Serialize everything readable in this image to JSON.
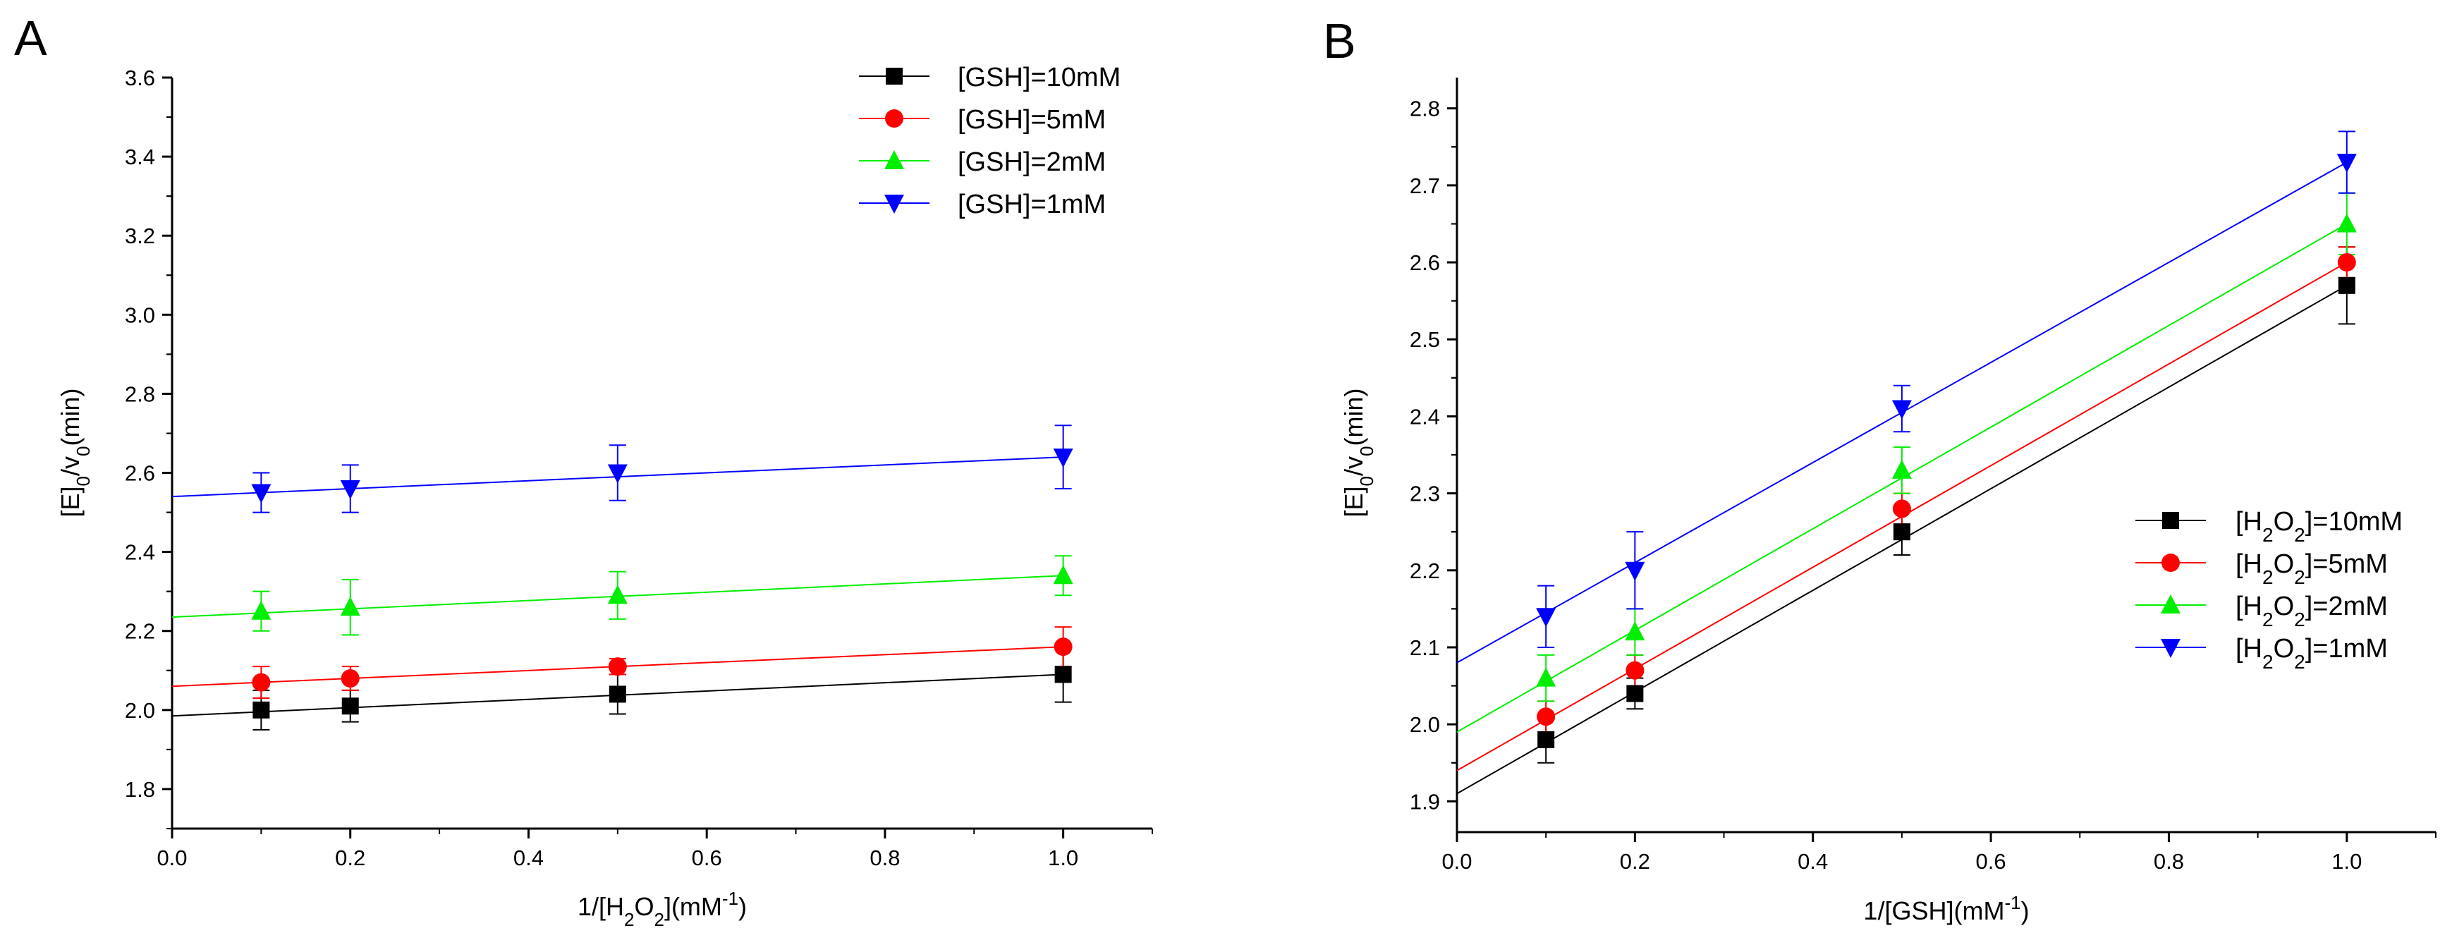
{
  "chart_data": [
    {
      "panel": "A",
      "type": "line",
      "xlabel": "1/[H2O2](mM-1)",
      "ylabel": "[E]0/v0(min)",
      "xlim": [
        0.0,
        1.1
      ],
      "ylim": [
        1.7,
        3.6
      ],
      "xticks": [
        "0.0",
        "0.2",
        "0.4",
        "0.6",
        "0.8",
        "1.0"
      ],
      "yticks": [
        "1.8",
        "2.0",
        "2.2",
        "2.4",
        "2.6",
        "2.8",
        "3.0",
        "3.2",
        "3.4",
        "3.6"
      ],
      "legend_position": "top-right",
      "x": [
        0.1,
        0.2,
        0.5,
        1.0
      ],
      "series": [
        {
          "name": "[GSH]=10mM",
          "color": "#000000",
          "marker": "square",
          "values": [
            2.0,
            2.01,
            2.04,
            2.09
          ],
          "errors": [
            0.05,
            0.04,
            0.05,
            0.07
          ],
          "fit": [
            1.985,
            2.09
          ]
        },
        {
          "name": "[GSH]=5mM",
          "color": "#ff0000",
          "marker": "circle",
          "values": [
            2.07,
            2.08,
            2.11,
            2.16
          ],
          "errors": [
            0.04,
            0.03,
            0.02,
            0.05
          ],
          "fit": [
            2.06,
            2.16
          ]
        },
        {
          "name": "[GSH]=2mM",
          "color": "#00ee00",
          "marker": "triangle-up",
          "values": [
            2.25,
            2.26,
            2.29,
            2.34
          ],
          "errors": [
            0.05,
            0.07,
            0.06,
            0.05
          ],
          "fit": [
            2.235,
            2.34
          ]
        },
        {
          "name": "[GSH]=1mM",
          "color": "#0000ff",
          "marker": "triangle-down",
          "values": [
            2.55,
            2.56,
            2.6,
            2.64
          ],
          "errors": [
            0.05,
            0.06,
            0.07,
            0.08
          ],
          "fit": [
            2.54,
            2.64
          ]
        }
      ]
    },
    {
      "panel": "B",
      "type": "line",
      "xlabel": "1/[GSH](mM-1)",
      "ylabel": "[E]0/v0(min)",
      "xlim": [
        0.0,
        1.1
      ],
      "ylim": [
        1.86,
        2.84
      ],
      "xticks": [
        "0.0",
        "0.2",
        "0.4",
        "0.6",
        "0.8",
        "1.0"
      ],
      "yticks": [
        "1.9",
        "2.0",
        "2.1",
        "2.2",
        "2.3",
        "2.4",
        "2.5",
        "2.6",
        "2.7",
        "2.8"
      ],
      "legend_position": "right",
      "x": [
        0.1,
        0.2,
        0.5,
        1.0
      ],
      "series": [
        {
          "name": "[H2O2]=10mM",
          "color": "#000000",
          "marker": "square",
          "values": [
            1.98,
            2.04,
            2.25,
            2.57
          ],
          "errors": [
            0.03,
            0.02,
            0.03,
            0.05
          ],
          "fit": [
            1.91,
            2.57
          ]
        },
        {
          "name": "[H2O2]=5mM",
          "color": "#ff0000",
          "marker": "circle",
          "values": [
            2.01,
            2.07,
            2.28,
            2.6
          ],
          "errors": [
            0.02,
            0.02,
            0.02,
            0.02
          ],
          "fit": [
            1.94,
            2.6
          ]
        },
        {
          "name": "[H2O2]=2mM",
          "color": "#00ee00",
          "marker": "triangle-up",
          "values": [
            2.06,
            2.12,
            2.33,
            2.65
          ],
          "errors": [
            0.03,
            0.03,
            0.03,
            0.04
          ],
          "fit": [
            1.99,
            2.65
          ]
        },
        {
          "name": "[H2O2]=1mM",
          "color": "#0000ff",
          "marker": "triangle-down",
          "values": [
            2.14,
            2.2,
            2.41,
            2.73
          ],
          "errors": [
            0.04,
            0.05,
            0.03,
            0.04
          ],
          "fit": [
            2.08,
            2.73
          ]
        }
      ]
    }
  ],
  "labels": {
    "panelA": "A",
    "panelB": "B",
    "ylabel_main": "[E]",
    "ylabel_sub1": "0",
    "ylabel_mid": "/v",
    "ylabel_sub2": "0",
    "ylabel_end": "(min)",
    "xlabelA_start": "1/[H",
    "xlabelA_sub1": "2",
    "xlabelA_mid": "O",
    "xlabelA_sub2": "2",
    "xlabelA_mid2": "](mM",
    "xlabelA_sup": "-1",
    "xlabelA_end": ")",
    "xlabelB_start": "1/[GSH](mM",
    "xlabelB_sup": "-1",
    "xlabelB_end": ")",
    "legendA": [
      "[GSH]=10mM",
      "[GSH]=5mM",
      "[GSH]=2mM",
      "[GSH]=1mM"
    ],
    "legendB_prefix": "[H",
    "legendB_sub1": "2",
    "legendB_mid": "O",
    "legendB_sub2": "2",
    "legendB_values": [
      "]=10mM",
      "]=5mM",
      "]=2mM",
      "]=1mM"
    ]
  }
}
